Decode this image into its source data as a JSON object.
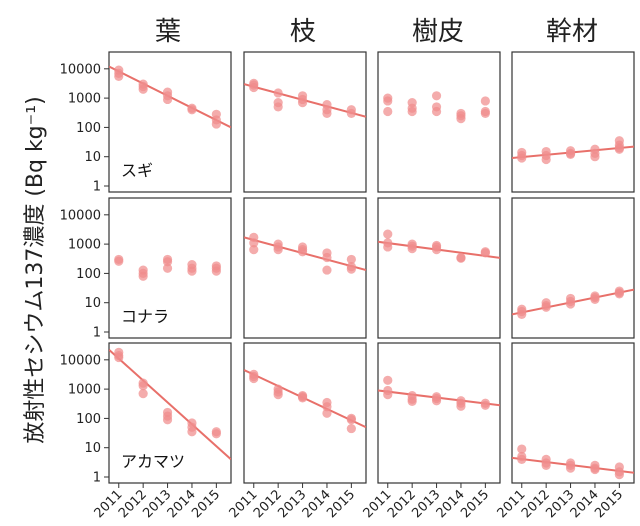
{
  "colors": {
    "points": "#f08c8c",
    "line": "#e8706a",
    "frame": "#333333"
  },
  "figure": {
    "ylabel": "放射性セシウム137濃度 (Bq kg⁻¹)",
    "columns": [
      "葉",
      "枝",
      "樹皮",
      "幹材"
    ],
    "rows": [
      "スギ",
      "コナラ",
      "アカマツ"
    ],
    "x_ticks": [
      "2011",
      "2012",
      "2013",
      "2014",
      "2015"
    ],
    "y_ticks": [
      "1",
      "10",
      "100",
      "1000",
      "10000"
    ]
  },
  "chart_data": {
    "type": "scatter",
    "y_scale": "log",
    "ylim": [
      1,
      20000
    ],
    "xlim": [
      2010.6,
      2015.6
    ],
    "panels": [
      {
        "row": "スギ",
        "col": "葉",
        "points": [
          [
            2011,
            9000
          ],
          [
            2011,
            7000
          ],
          [
            2011,
            5500
          ],
          [
            2012,
            3000
          ],
          [
            2012,
            2500
          ],
          [
            2012,
            2000
          ],
          [
            2013,
            1600
          ],
          [
            2013,
            1200
          ],
          [
            2013,
            900
          ],
          [
            2014,
            450
          ],
          [
            2014,
            400
          ],
          [
            2015,
            280
          ],
          [
            2015,
            180
          ],
          [
            2015,
            130
          ]
        ],
        "trend": [
          [
            2010.6,
            12000
          ],
          [
            2015.6,
            100
          ]
        ]
      },
      {
        "row": "スギ",
        "col": "枝",
        "points": [
          [
            2011,
            3200
          ],
          [
            2011,
            2800
          ],
          [
            2011,
            2300
          ],
          [
            2012,
            1500
          ],
          [
            2012,
            700
          ],
          [
            2012,
            500
          ],
          [
            2013,
            1200
          ],
          [
            2013,
            900
          ],
          [
            2013,
            700
          ],
          [
            2014,
            600
          ],
          [
            2014,
            400
          ],
          [
            2014,
            300
          ],
          [
            2015,
            400
          ],
          [
            2015,
            300
          ]
        ],
        "trend": [
          [
            2010.6,
            3000
          ],
          [
            2015.6,
            230
          ]
        ]
      },
      {
        "row": "スギ",
        "col": "樹皮",
        "points": [
          [
            2011,
            1000
          ],
          [
            2011,
            800
          ],
          [
            2011,
            350
          ],
          [
            2012,
            700
          ],
          [
            2012,
            450
          ],
          [
            2012,
            350
          ],
          [
            2013,
            1200
          ],
          [
            2013,
            500
          ],
          [
            2013,
            350
          ],
          [
            2014,
            300
          ],
          [
            2014,
            250
          ],
          [
            2014,
            200
          ],
          [
            2015,
            800
          ],
          [
            2015,
            350
          ],
          [
            2015,
            300
          ]
        ],
        "trend": null
      },
      {
        "row": "スギ",
        "col": "幹材",
        "points": [
          [
            2011,
            14
          ],
          [
            2011,
            11
          ],
          [
            2011,
            9
          ],
          [
            2012,
            15
          ],
          [
            2012,
            11
          ],
          [
            2012,
            8
          ],
          [
            2013,
            16
          ],
          [
            2013,
            13
          ],
          [
            2013,
            12
          ],
          [
            2014,
            18
          ],
          [
            2014,
            13
          ],
          [
            2014,
            10
          ],
          [
            2015,
            35
          ],
          [
            2015,
            25
          ],
          [
            2015,
            20
          ],
          [
            2015,
            18
          ]
        ],
        "trend": [
          [
            2010.6,
            9
          ],
          [
            2015.6,
            22
          ]
        ]
      },
      {
        "row": "コナラ",
        "col": "葉",
        "points": [
          [
            2011,
            300
          ],
          [
            2011,
            260
          ],
          [
            2012,
            130
          ],
          [
            2012,
            100
          ],
          [
            2012,
            80
          ],
          [
            2013,
            300
          ],
          [
            2013,
            250
          ],
          [
            2013,
            150
          ],
          [
            2014,
            200
          ],
          [
            2014,
            150
          ],
          [
            2014,
            120
          ],
          [
            2015,
            180
          ],
          [
            2015,
            150
          ],
          [
            2015,
            120
          ]
        ],
        "trend": null
      },
      {
        "row": "コナラ",
        "col": "枝",
        "points": [
          [
            2011,
            1700
          ],
          [
            2011,
            1100
          ],
          [
            2011,
            650
          ],
          [
            2012,
            1000
          ],
          [
            2012,
            800
          ],
          [
            2012,
            650
          ],
          [
            2013,
            800
          ],
          [
            2013,
            650
          ],
          [
            2013,
            550
          ],
          [
            2014,
            500
          ],
          [
            2014,
            350
          ],
          [
            2014,
            130
          ],
          [
            2015,
            300
          ],
          [
            2015,
            170
          ],
          [
            2015,
            140
          ]
        ],
        "trend": [
          [
            2010.6,
            1700
          ],
          [
            2015.6,
            130
          ]
        ]
      },
      {
        "row": "コナラ",
        "col": "樹皮",
        "points": [
          [
            2011,
            2200
          ],
          [
            2011,
            1100
          ],
          [
            2011,
            800
          ],
          [
            2012,
            1000
          ],
          [
            2012,
            850
          ],
          [
            2012,
            700
          ],
          [
            2013,
            900
          ],
          [
            2013,
            800
          ],
          [
            2013,
            650
          ],
          [
            2014,
            350
          ],
          [
            2014,
            330
          ],
          [
            2015,
            550
          ],
          [
            2015,
            500
          ]
        ],
        "trend": [
          [
            2010.6,
            1200
          ],
          [
            2015.6,
            340
          ]
        ]
      },
      {
        "row": "コナラ",
        "col": "幹材",
        "points": [
          [
            2011,
            6
          ],
          [
            2011,
            5
          ],
          [
            2011,
            4
          ],
          [
            2012,
            10
          ],
          [
            2012,
            8
          ],
          [
            2012,
            7
          ],
          [
            2013,
            14
          ],
          [
            2013,
            11
          ],
          [
            2013,
            9
          ],
          [
            2014,
            17
          ],
          [
            2014,
            15
          ],
          [
            2014,
            13
          ],
          [
            2015,
            25
          ],
          [
            2015,
            22
          ],
          [
            2015,
            20
          ]
        ],
        "trend": [
          [
            2010.6,
            4
          ],
          [
            2015.6,
            28
          ]
        ]
      },
      {
        "row": "アカマツ",
        "col": "葉",
        "points": [
          [
            2011,
            18000
          ],
          [
            2011,
            14000
          ],
          [
            2011,
            12000
          ],
          [
            2012,
            1600
          ],
          [
            2012,
            1300
          ],
          [
            2012,
            700
          ],
          [
            2013,
            160
          ],
          [
            2013,
            120
          ],
          [
            2013,
            90
          ],
          [
            2014,
            70
          ],
          [
            2014,
            50
          ],
          [
            2014,
            35
          ],
          [
            2015,
            35
          ],
          [
            2015,
            30
          ]
        ],
        "trend": [
          [
            2010.6,
            22000
          ],
          [
            2015.6,
            4
          ]
        ]
      },
      {
        "row": "アカマツ",
        "col": "枝",
        "points": [
          [
            2011,
            3200
          ],
          [
            2011,
            2700
          ],
          [
            2011,
            2300
          ],
          [
            2012,
            1000
          ],
          [
            2012,
            800
          ],
          [
            2012,
            650
          ],
          [
            2013,
            600
          ],
          [
            2013,
            550
          ],
          [
            2013,
            500
          ],
          [
            2014,
            350
          ],
          [
            2014,
            250
          ],
          [
            2014,
            150
          ],
          [
            2015,
            100
          ],
          [
            2015,
            90
          ],
          [
            2015,
            45
          ]
        ],
        "trend": [
          [
            2010.6,
            4500
          ],
          [
            2015.6,
            50
          ]
        ]
      },
      {
        "row": "アカマツ",
        "col": "樹皮",
        "points": [
          [
            2011,
            2000
          ],
          [
            2011,
            900
          ],
          [
            2011,
            650
          ],
          [
            2012,
            600
          ],
          [
            2012,
            450
          ],
          [
            2012,
            380
          ],
          [
            2013,
            550
          ],
          [
            2013,
            480
          ],
          [
            2013,
            400
          ],
          [
            2014,
            400
          ],
          [
            2014,
            330
          ],
          [
            2014,
            260
          ],
          [
            2015,
            330
          ],
          [
            2015,
            280
          ]
        ],
        "trend": [
          [
            2010.6,
            900
          ],
          [
            2015.6,
            280
          ]
        ]
      },
      {
        "row": "アカマツ",
        "col": "幹材",
        "points": [
          [
            2011,
            9
          ],
          [
            2011,
            5
          ],
          [
            2011,
            4
          ],
          [
            2012,
            4
          ],
          [
            2012,
            3
          ],
          [
            2012,
            2.5
          ],
          [
            2013,
            3
          ],
          [
            2013,
            2.5
          ],
          [
            2013,
            2
          ],
          [
            2014,
            2.5
          ],
          [
            2014,
            2
          ],
          [
            2014,
            1.8
          ],
          [
            2015,
            2.2
          ],
          [
            2015,
            1.5
          ],
          [
            2015,
            1.2
          ]
        ],
        "trend": [
          [
            2010.6,
            4.5
          ],
          [
            2015.6,
            1.4
          ]
        ]
      }
    ]
  }
}
